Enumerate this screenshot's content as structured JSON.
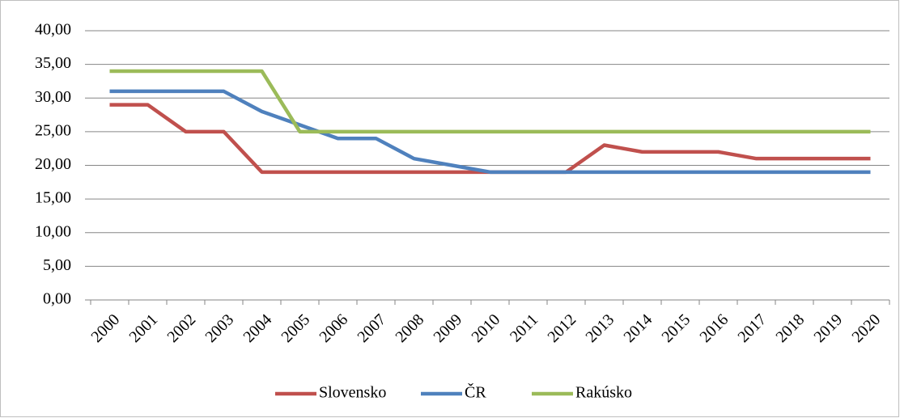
{
  "chart_data": {
    "type": "line",
    "categories": [
      "2000",
      "2001",
      "2002",
      "2003",
      "2004",
      "2005",
      "2006",
      "2007",
      "2008",
      "2009",
      "2010",
      "2011",
      "2012",
      "2013",
      "2014",
      "2015",
      "2016",
      "2017",
      "2018",
      "2019",
      "2020"
    ],
    "series": [
      {
        "name": "Slovensko",
        "color": "#c0504d",
        "values": [
          29,
          29,
          25,
          25,
          19,
          19,
          19,
          19,
          19,
          19,
          19,
          19,
          19,
          23,
          22,
          22,
          22,
          21,
          21,
          21,
          21
        ]
      },
      {
        "name": "ČR",
        "color": "#4f81bd",
        "values": [
          31,
          31,
          31,
          31,
          28,
          26,
          24,
          24,
          21,
          20,
          19,
          19,
          19,
          19,
          19,
          19,
          19,
          19,
          19,
          19,
          19
        ]
      },
      {
        "name": "Rakúsko",
        "color": "#9bbb59",
        "values": [
          34,
          34,
          34,
          34,
          34,
          25,
          25,
          25,
          25,
          25,
          25,
          25,
          25,
          25,
          25,
          25,
          25,
          25,
          25,
          25,
          25
        ]
      }
    ],
    "ylim": [
      0,
      40
    ],
    "yticks": [
      {
        "value": 0,
        "label": "0,00"
      },
      {
        "value": 5,
        "label": "5,00"
      },
      {
        "value": 10,
        "label": "10,00"
      },
      {
        "value": 15,
        "label": "15,00"
      },
      {
        "value": 20,
        "label": "20,00"
      },
      {
        "value": 25,
        "label": "25,00"
      },
      {
        "value": 30,
        "label": "30,00"
      },
      {
        "value": 35,
        "label": "35,00"
      },
      {
        "value": 40,
        "label": "40,00"
      }
    ],
    "grid": true,
    "legend": "bottom"
  }
}
